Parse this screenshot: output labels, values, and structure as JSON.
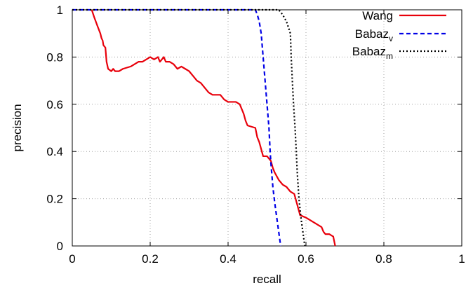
{
  "chart_data": {
    "type": "line",
    "xlabel": "recall",
    "ylabel": "precision",
    "xlim": [
      0,
      1
    ],
    "ylim": [
      0,
      1
    ],
    "x_ticks": [
      "0",
      "0.2",
      "0.4",
      "0.6",
      "0.8",
      "1"
    ],
    "y_ticks": [
      "0",
      "0.2",
      "0.4",
      "0.6",
      "0.8",
      "1"
    ],
    "grid": true,
    "legend_position": "top-right",
    "series": [
      {
        "name": "Wang",
        "name_base": "Wang",
        "name_sub": "",
        "color": "#e8000b",
        "dash": "solid",
        "points": [
          [
            0.05,
            1.0
          ],
          [
            0.056,
            0.97
          ],
          [
            0.065,
            0.93
          ],
          [
            0.072,
            0.9
          ],
          [
            0.075,
            0.88
          ],
          [
            0.078,
            0.87
          ],
          [
            0.08,
            0.85
          ],
          [
            0.085,
            0.84
          ],
          [
            0.088,
            0.78
          ],
          [
            0.092,
            0.75
          ],
          [
            0.1,
            0.74
          ],
          [
            0.105,
            0.75
          ],
          [
            0.11,
            0.74
          ],
          [
            0.12,
            0.74
          ],
          [
            0.13,
            0.75
          ],
          [
            0.15,
            0.76
          ],
          [
            0.17,
            0.78
          ],
          [
            0.18,
            0.78
          ],
          [
            0.19,
            0.79
          ],
          [
            0.2,
            0.8
          ],
          [
            0.21,
            0.79
          ],
          [
            0.22,
            0.8
          ],
          [
            0.225,
            0.78
          ],
          [
            0.235,
            0.8
          ],
          [
            0.24,
            0.78
          ],
          [
            0.25,
            0.78
          ],
          [
            0.26,
            0.77
          ],
          [
            0.27,
            0.75
          ],
          [
            0.28,
            0.76
          ],
          [
            0.29,
            0.75
          ],
          [
            0.3,
            0.74
          ],
          [
            0.31,
            0.72
          ],
          [
            0.32,
            0.7
          ],
          [
            0.33,
            0.69
          ],
          [
            0.34,
            0.67
          ],
          [
            0.35,
            0.65
          ],
          [
            0.36,
            0.64
          ],
          [
            0.38,
            0.64
          ],
          [
            0.39,
            0.62
          ],
          [
            0.4,
            0.61
          ],
          [
            0.42,
            0.61
          ],
          [
            0.43,
            0.6
          ],
          [
            0.44,
            0.56
          ],
          [
            0.445,
            0.53
          ],
          [
            0.45,
            0.51
          ],
          [
            0.47,
            0.5
          ],
          [
            0.475,
            0.46
          ],
          [
            0.48,
            0.44
          ],
          [
            0.485,
            0.41
          ],
          [
            0.49,
            0.38
          ],
          [
            0.5,
            0.38
          ],
          [
            0.51,
            0.36
          ],
          [
            0.515,
            0.33
          ],
          [
            0.52,
            0.31
          ],
          [
            0.53,
            0.28
          ],
          [
            0.54,
            0.26
          ],
          [
            0.55,
            0.25
          ],
          [
            0.56,
            0.23
          ],
          [
            0.57,
            0.22
          ],
          [
            0.575,
            0.19
          ],
          [
            0.58,
            0.16
          ],
          [
            0.585,
            0.13
          ],
          [
            0.6,
            0.12
          ],
          [
            0.62,
            0.1
          ],
          [
            0.64,
            0.08
          ],
          [
            0.645,
            0.06
          ],
          [
            0.65,
            0.05
          ],
          [
            0.66,
            0.05
          ],
          [
            0.67,
            0.04
          ],
          [
            0.675,
            0.0
          ]
        ]
      },
      {
        "name": "Babazv",
        "name_base": "Babaz",
        "name_sub": "v",
        "color": "#0000e6",
        "dash": "6 4",
        "points": [
          [
            0.0,
            1.0
          ],
          [
            0.47,
            1.0
          ],
          [
            0.475,
            0.98
          ],
          [
            0.48,
            0.95
          ],
          [
            0.485,
            0.9
          ],
          [
            0.49,
            0.8
          ],
          [
            0.495,
            0.7
          ],
          [
            0.5,
            0.6
          ],
          [
            0.505,
            0.5
          ],
          [
            0.508,
            0.4
          ],
          [
            0.51,
            0.35
          ],
          [
            0.515,
            0.25
          ],
          [
            0.52,
            0.18
          ],
          [
            0.525,
            0.12
          ],
          [
            0.53,
            0.06
          ],
          [
            0.535,
            0.0
          ]
        ]
      },
      {
        "name": "Babazm",
        "name_base": "Babaz",
        "name_sub": "m",
        "color": "#000000",
        "dash": "2 3",
        "points": [
          [
            0.0,
            1.0
          ],
          [
            0.53,
            1.0
          ],
          [
            0.54,
            0.98
          ],
          [
            0.55,
            0.95
          ],
          [
            0.56,
            0.9
          ],
          [
            0.562,
            0.8
          ],
          [
            0.565,
            0.7
          ],
          [
            0.568,
            0.6
          ],
          [
            0.572,
            0.5
          ],
          [
            0.575,
            0.4
          ],
          [
            0.578,
            0.3
          ],
          [
            0.582,
            0.2
          ],
          [
            0.587,
            0.12
          ],
          [
            0.592,
            0.06
          ],
          [
            0.597,
            0.0
          ]
        ]
      }
    ]
  }
}
